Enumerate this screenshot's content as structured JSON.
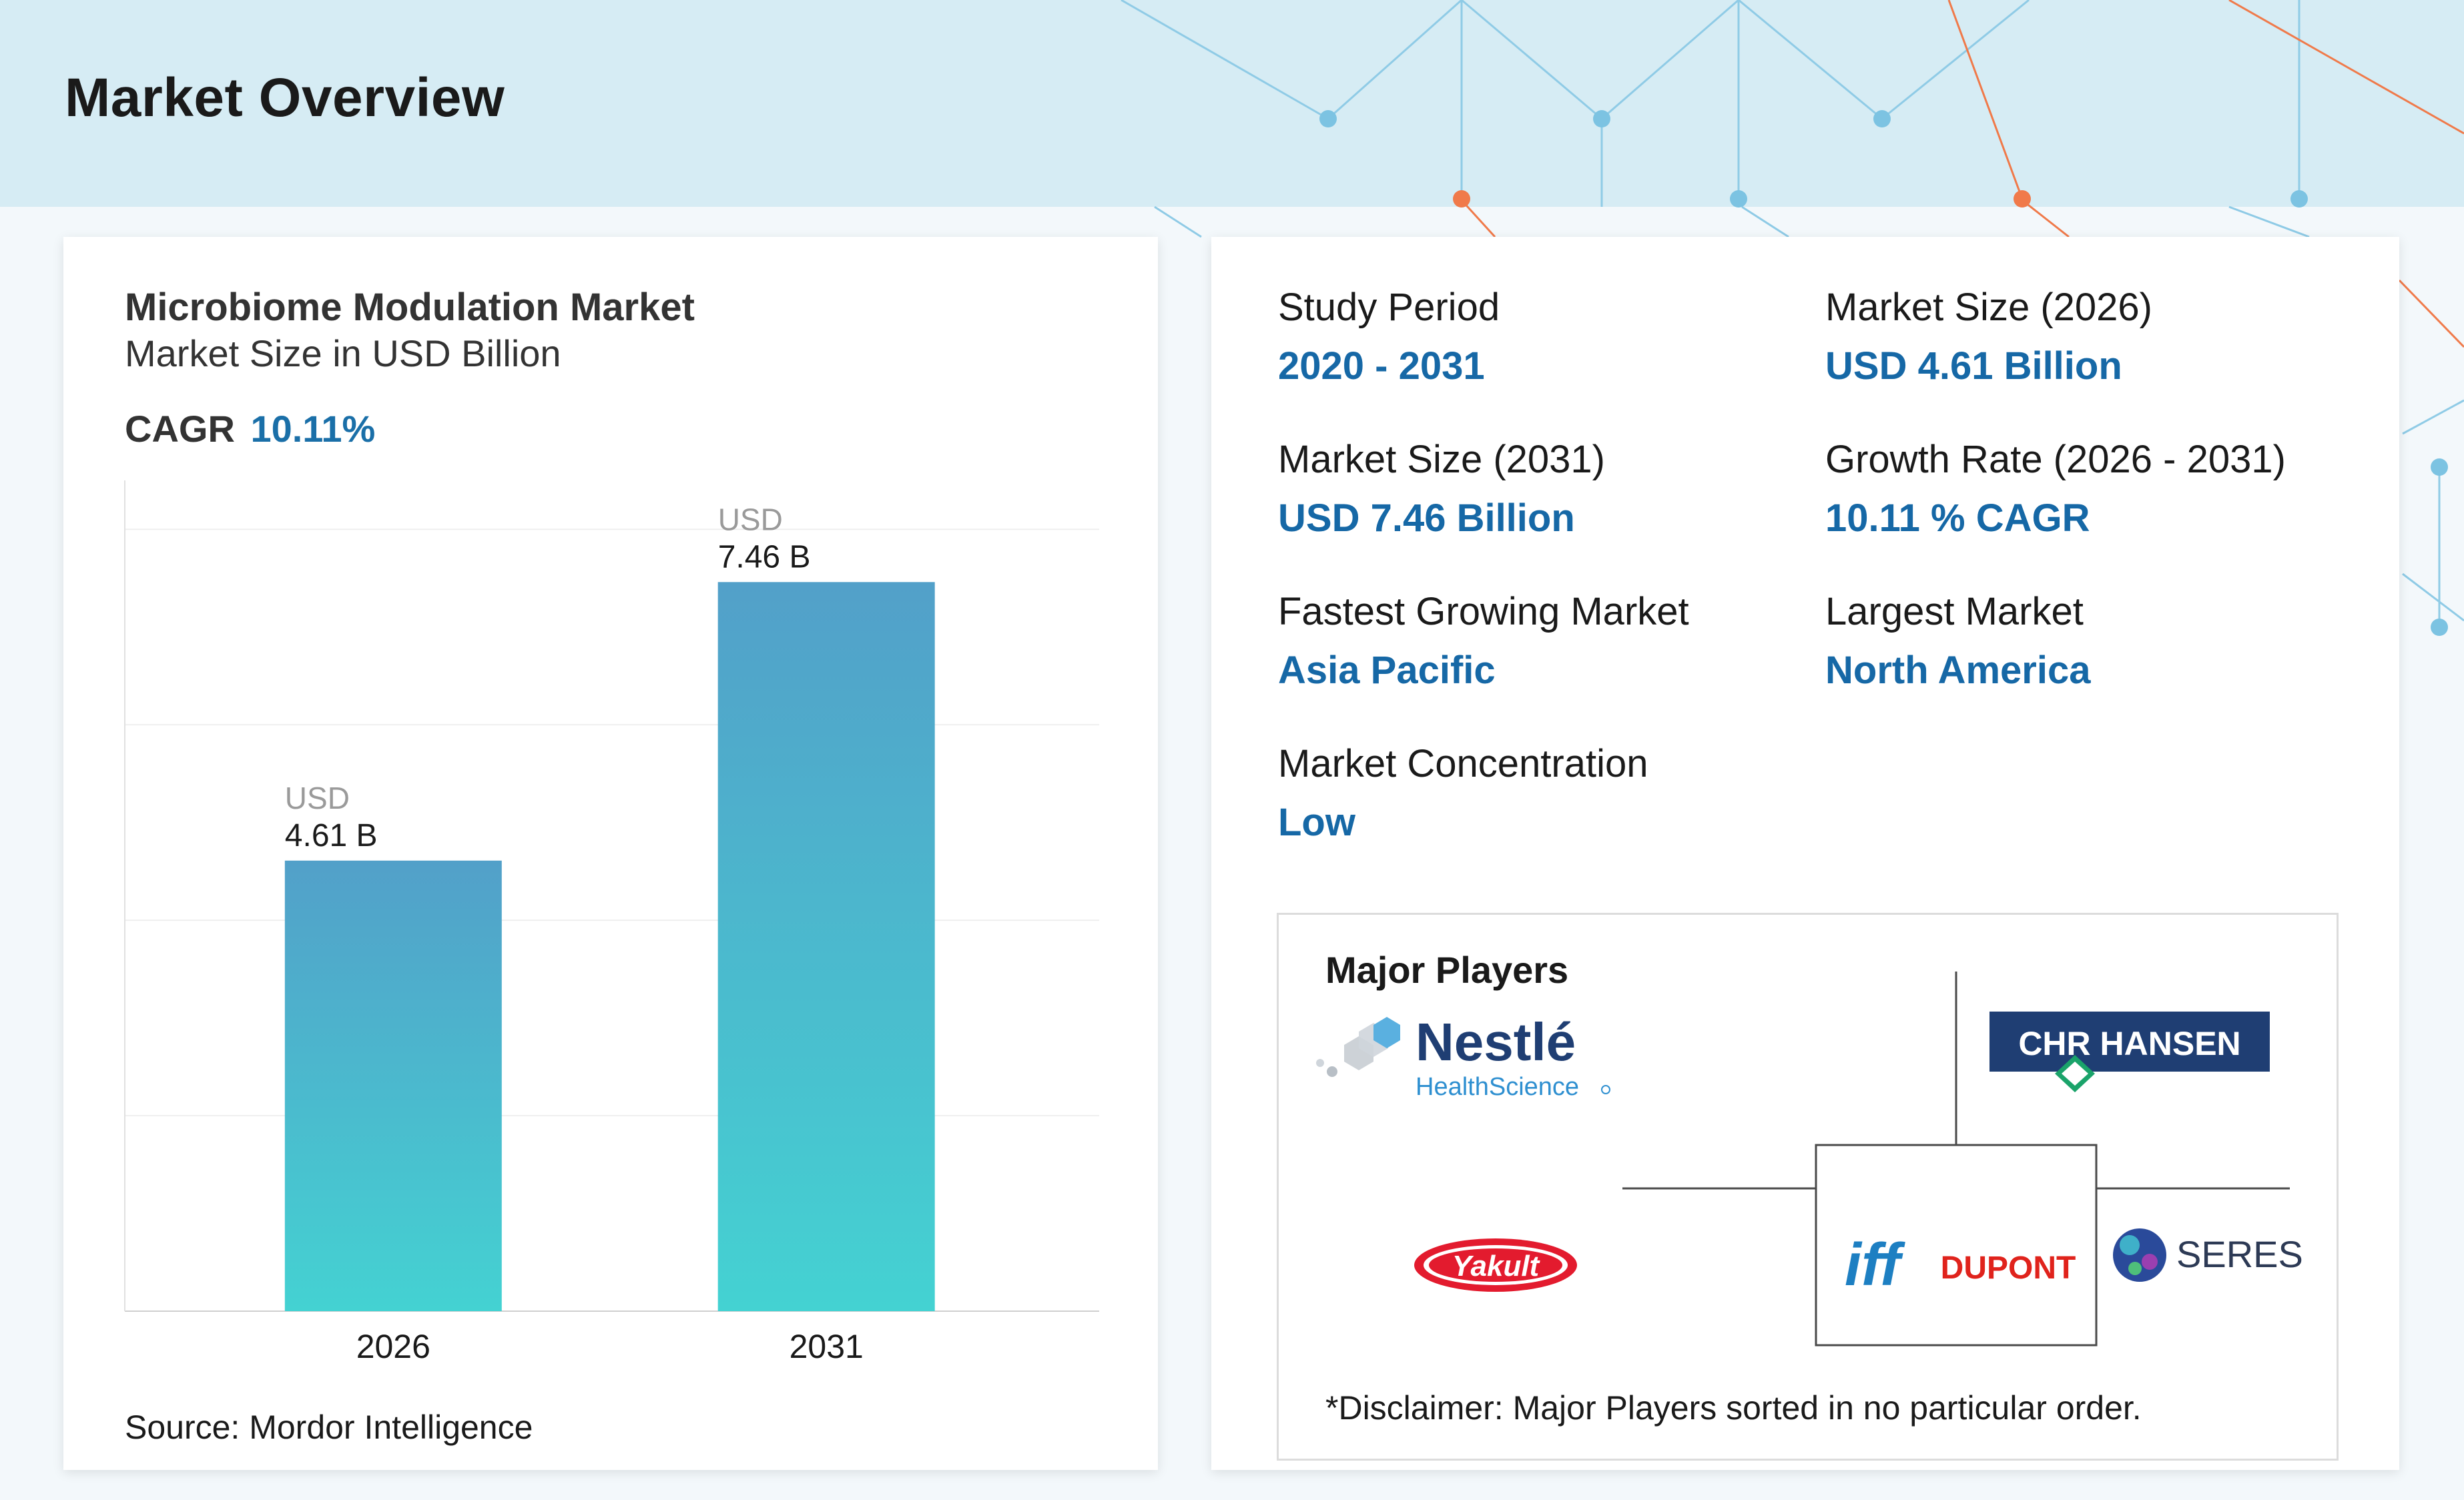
{
  "page": {
    "title": "Market Overview"
  },
  "chart_card": {
    "title": "Microbiome Modulation Market",
    "subtitle": "Market Size in USD Billion",
    "cagr_label": "CAGR",
    "cagr_value": "10.11%",
    "source": "Source: Mordor Intelligence"
  },
  "chart_data": {
    "type": "bar",
    "title": "Microbiome Modulation Market",
    "subtitle": "Market Size in USD Billion",
    "categories": [
      "2026",
      "2031"
    ],
    "values": [
      4.61,
      7.46
    ],
    "value_prefix": "USD",
    "value_labels": [
      "4.61 B",
      "7.46 B"
    ],
    "ylim": [
      0,
      8.5
    ],
    "grid": true,
    "colors": {
      "bar_top": "#52a0c9",
      "bar_bottom": "#44d2d2"
    }
  },
  "stats": [
    {
      "label": "Study Period",
      "value": "2020 - 2031"
    },
    {
      "label": "Market Size (2026)",
      "value": "USD 4.61 Billion"
    },
    {
      "label": "Market Size (2031)",
      "value": "USD 7.46 Billion"
    },
    {
      "label": "Growth Rate (2026 - 2031)",
      "value": "10.11 % CAGR"
    },
    {
      "label": "Fastest Growing Market",
      "value": "Asia Pacific"
    },
    {
      "label": "Largest Market",
      "value": "North America"
    },
    {
      "label": "Market Concentration",
      "value": "Low"
    }
  ],
  "players": {
    "title": "Major Players",
    "logos": [
      {
        "name": "Nestle HealthScience",
        "line1": "Nestlé",
        "line2": "HealthScience"
      },
      {
        "name": "Chr. Hansen",
        "text": "CHR HANSEN"
      },
      {
        "name": "Yakult",
        "text": "Yakult"
      },
      {
        "name": "IFF DuPont",
        "text1": "iff",
        "text2": "DUPONT"
      },
      {
        "name": "Seres Therapeutics",
        "text": "SERES"
      }
    ],
    "disclaimer": "*Disclaimer: Major Players sorted in no particular order."
  },
  "colors": {
    "accent": "#1668a6",
    "banner": "#d6ecf4",
    "network_blue": "#7cc3e2",
    "network_orange": "#f07a4a"
  }
}
